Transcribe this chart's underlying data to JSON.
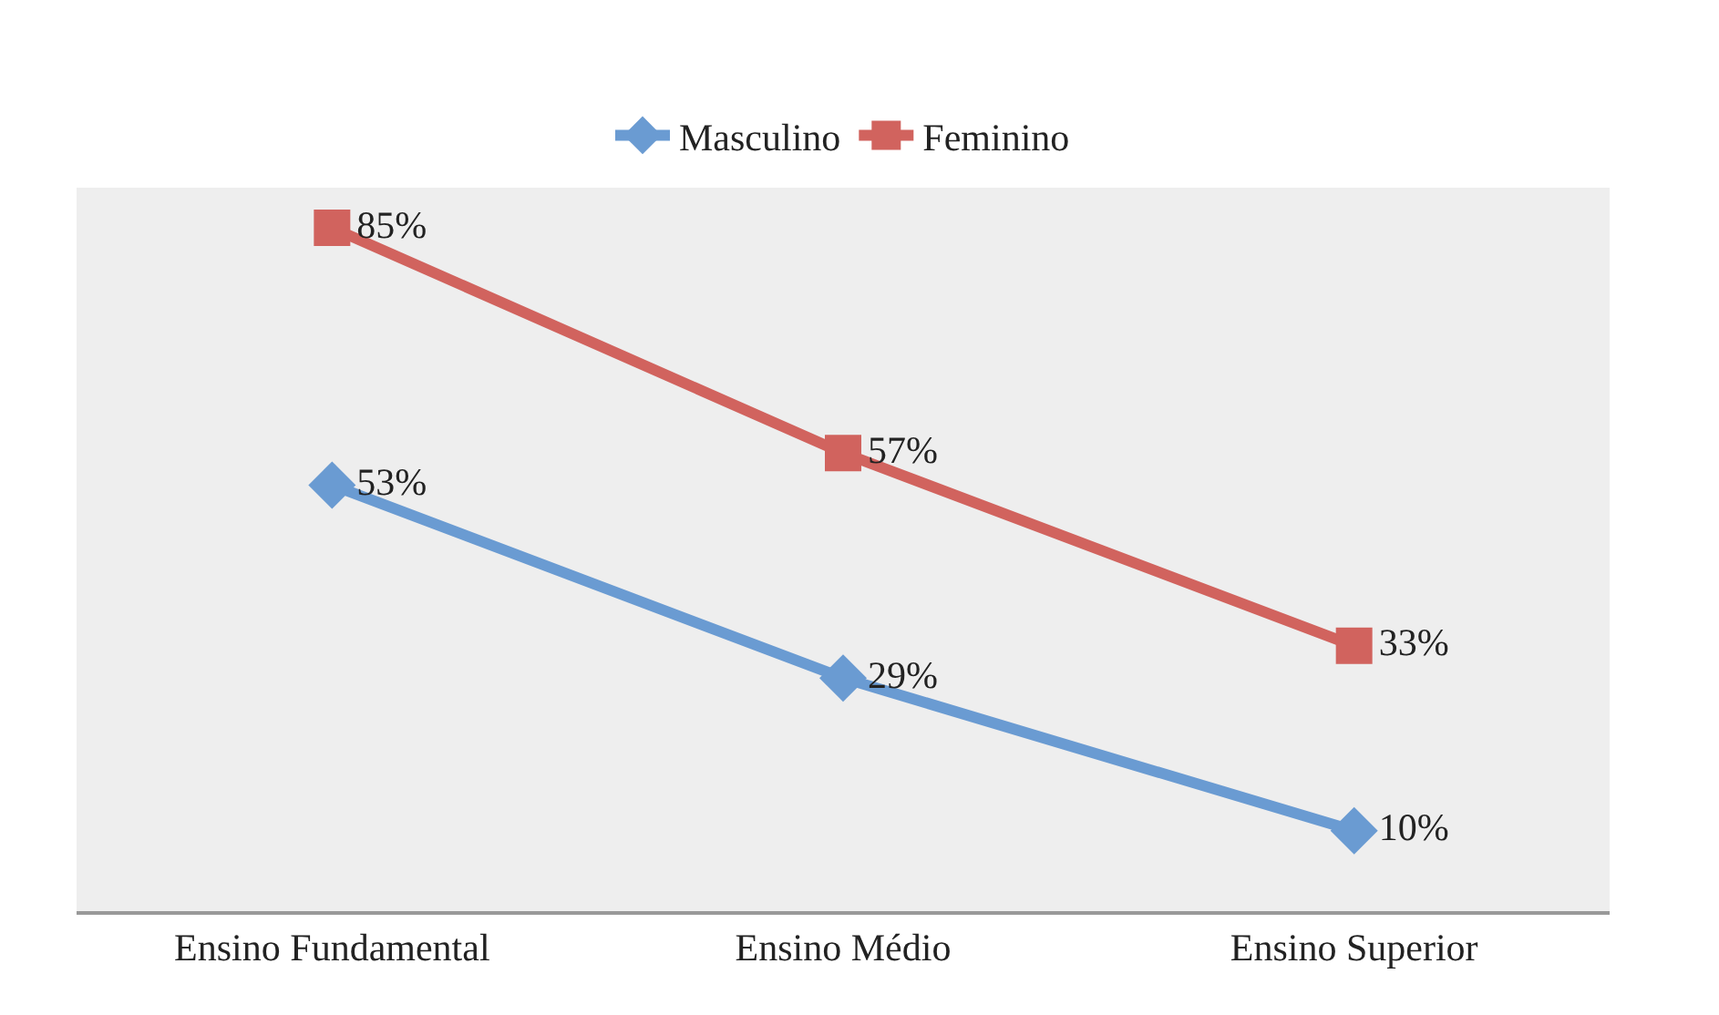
{
  "chart_data": {
    "type": "line",
    "categories": [
      "Ensino Fundamental",
      "Ensino Médio",
      "Ensino Superior"
    ],
    "series": [
      {
        "name": "Masculino",
        "color": "#6a9bd2",
        "values": [
          53,
          29,
          10
        ],
        "marker": "diamond",
        "value_labels": [
          "53%",
          "29%",
          "10%"
        ]
      },
      {
        "name": "Feminino",
        "color": "#d1635e",
        "values": [
          85,
          57,
          33
        ],
        "marker": "square",
        "value_labels": [
          "85%",
          "57%",
          "33%"
        ]
      }
    ],
    "ylim": [
      0,
      90
    ],
    "legend": "top",
    "grid": false,
    "tick_labels": "x"
  }
}
